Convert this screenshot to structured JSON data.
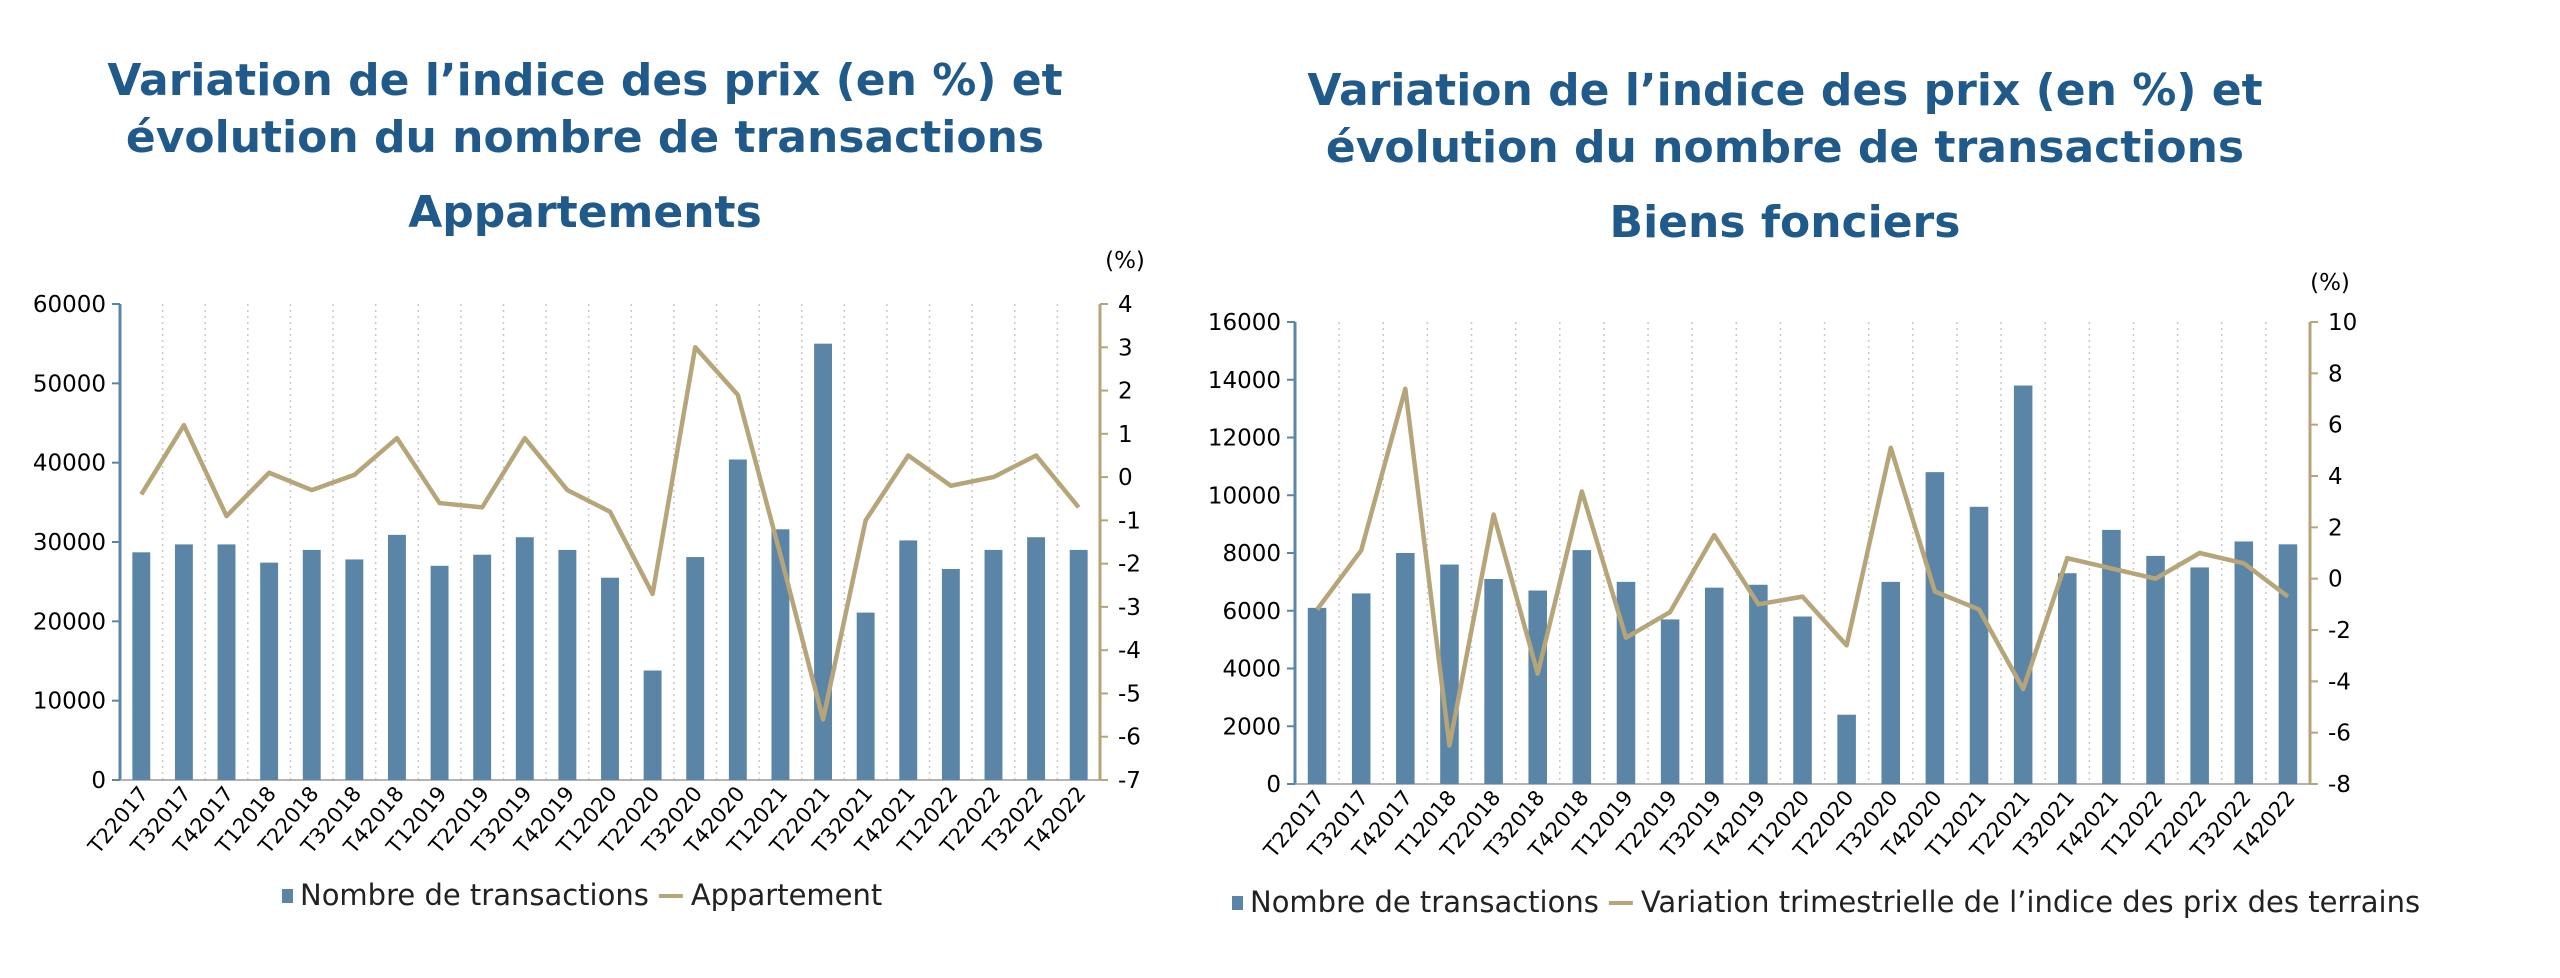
{
  "chart_data": [
    {
      "type": "bar",
      "title": "Variation de l’indice des prix (en %) et évolution du nombre de transactions",
      "subtitle": "Appartements",
      "right_axis_unit": "(%)",
      "categories": [
        "T22017",
        "T32017",
        "T42017",
        "T12018",
        "T22018",
        "T32018",
        "T42018",
        "T12019",
        "T22019",
        "T32019",
        "T42019",
        "T12020",
        "T22020",
        "T32020",
        "T42020",
        "T12021",
        "T22021",
        "T32021",
        "T42021",
        "T12022",
        "T22022",
        "T32022",
        "T42022"
      ],
      "series": [
        {
          "name": "Nombre de transactions",
          "type": "bar",
          "axis": "left",
          "values": [
            28700,
            29700,
            29700,
            27400,
            29000,
            27800,
            30900,
            27000,
            28400,
            30600,
            29000,
            25500,
            13800,
            28100,
            40400,
            31600,
            55000,
            21100,
            30200,
            26600,
            29000,
            30600,
            29000
          ]
        },
        {
          "name": "Appartement",
          "type": "line",
          "axis": "right",
          "values": [
            -0.4,
            1.2,
            -0.9,
            0.1,
            -0.3,
            0.05,
            0.9,
            -0.6,
            -0.7,
            0.9,
            -0.3,
            -0.8,
            -2.7,
            3.0,
            1.9,
            -1.8,
            -5.6,
            -1.0,
            0.5,
            -0.2,
            0.0,
            0.5,
            -0.7
          ]
        }
      ],
      "ylim_left": [
        0,
        60000
      ],
      "ylim_right": [
        -7,
        4
      ],
      "yticks_left": [
        0,
        10000,
        20000,
        30000,
        40000,
        50000,
        60000
      ],
      "yticks_right": [
        -7,
        -6,
        -5,
        -4,
        -3,
        -2,
        -1,
        0,
        1,
        2,
        3,
        4
      ],
      "grid": "vertical dotted",
      "legend": "bottom",
      "colors": {
        "bar": "#5b85a6",
        "line": "#b7a57a"
      }
    },
    {
      "type": "bar",
      "title": "Variation de l’indice des prix (en %) et évolution du nombre de transactions",
      "subtitle": "Biens fonciers",
      "right_axis_unit": "(%)",
      "categories": [
        "T22017",
        "T32017",
        "T42017",
        "T12018",
        "T22018",
        "T32018",
        "T42018",
        "T12019",
        "T22019",
        "T32019",
        "T42019",
        "T12020",
        "T22020",
        "T32020",
        "T42020",
        "T12021",
        "T22021",
        "T32021",
        "T42021",
        "T12022",
        "T22022",
        "T32022",
        "T42022"
      ],
      "series": [
        {
          "name": "Nombre de transactions",
          "type": "bar",
          "axis": "left",
          "values": [
            6100,
            6600,
            8000,
            7600,
            7100,
            6700,
            8100,
            7000,
            5700,
            6800,
            6900,
            5800,
            2400,
            7000,
            10800,
            9600,
            13800,
            7300,
            8800,
            7900,
            7500,
            8400,
            8300
          ]
        },
        {
          "name": "Variation trimestrielle de l’indice des prix des terrains",
          "type": "line",
          "axis": "right",
          "values": [
            -1.2,
            1.1,
            7.4,
            -6.5,
            2.5,
            -3.7,
            3.4,
            -2.3,
            -1.3,
            1.7,
            -1.0,
            -0.7,
            -2.6,
            5.1,
            -0.5,
            -1.2,
            -4.3,
            0.8,
            0.4,
            0.0,
            1.0,
            0.6,
            -0.7
          ]
        }
      ],
      "ylim_left": [
        0,
        16000
      ],
      "ylim_right": [
        -8,
        10
      ],
      "yticks_left": [
        0,
        2000,
        4000,
        6000,
        8000,
        10000,
        12000,
        14000,
        16000
      ],
      "yticks_right": [
        -8,
        -6,
        -4,
        -2,
        0,
        2,
        4,
        6,
        8,
        10
      ],
      "grid": "vertical dotted",
      "legend": "bottom",
      "colors": {
        "bar": "#5b85a6",
        "line": "#b7a57a"
      }
    }
  ]
}
